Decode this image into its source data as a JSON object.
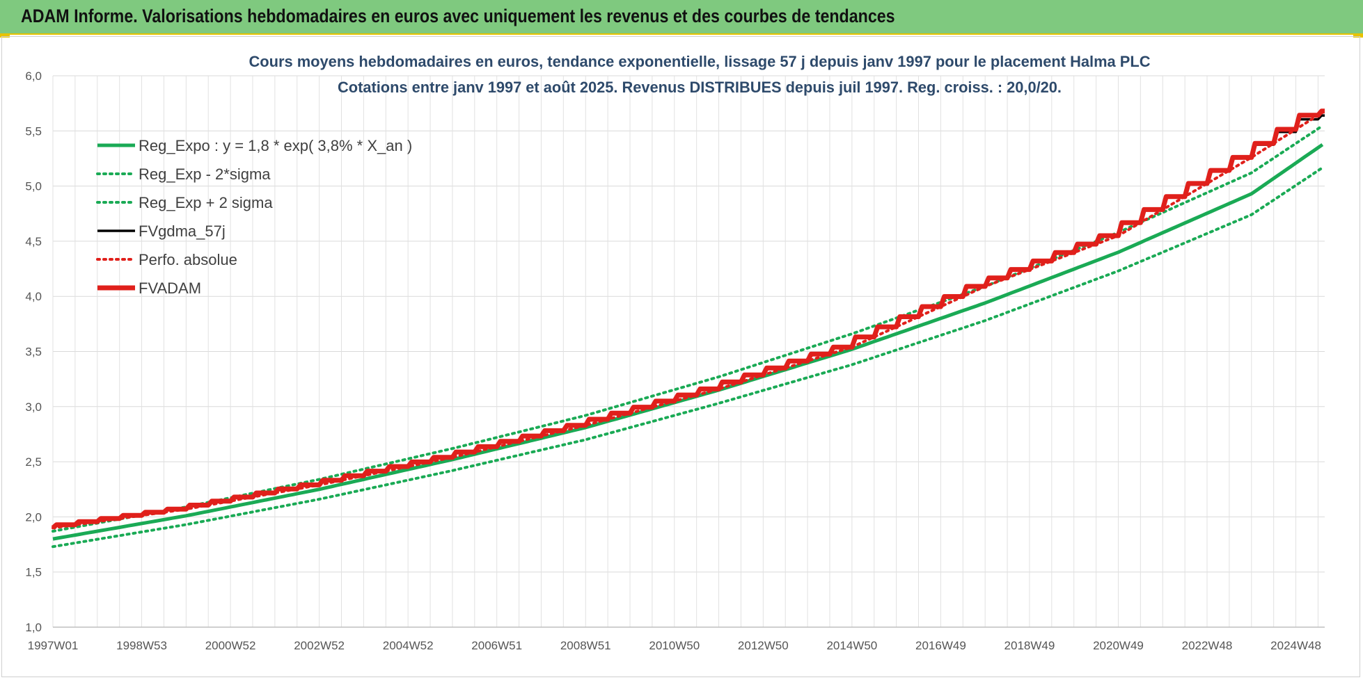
{
  "banner": {
    "title": "ADAM Informe. Valorisations hebdomadaires en euros avec uniquement les revenus et des courbes de tendances"
  },
  "chart_data": {
    "type": "line",
    "title": "Cours moyens hebdomadaires en euros, tendance exponentielle, lissage 57 j depuis janv 1997  pour le placement Halma PLC",
    "subtitle": "Cotations entre janv 1997 et août 2025.  Revenus DISTRIBUES depuis juil 1997.  Reg. croiss. : 20,0/20.",
    "xlabel": "",
    "ylabel": "",
    "ylim": [
      1.0,
      6.0
    ],
    "xlim": [
      1997.0,
      2025.65
    ],
    "y_ticks": [
      "1,0",
      "1,5",
      "2,0",
      "2,5",
      "3,0",
      "3,5",
      "4,0",
      "4,5",
      "5,0",
      "5,5",
      "6,0"
    ],
    "x_ticks": [
      {
        "label": "1997W01",
        "x": 1997.0
      },
      {
        "label": "1998W53",
        "x": 1999.0
      },
      {
        "label": "2000W52",
        "x": 2001.0
      },
      {
        "label": "2002W52",
        "x": 2003.0
      },
      {
        "label": "2004W52",
        "x": 2005.0
      },
      {
        "label": "2006W51",
        "x": 2007.0
      },
      {
        "label": "2008W51",
        "x": 2009.0
      },
      {
        "label": "2010W50",
        "x": 2011.0
      },
      {
        "label": "2012W50",
        "x": 2013.0
      },
      {
        "label": "2014W50",
        "x": 2015.0
      },
      {
        "label": "2016W49",
        "x": 2017.0
      },
      {
        "label": "2018W49",
        "x": 2019.0
      },
      {
        "label": "2020W49",
        "x": 2021.0
      },
      {
        "label": "2022W48",
        "x": 2023.0
      },
      {
        "label": "2024W48",
        "x": 2025.0
      }
    ],
    "grid": true,
    "legend_position": "top-left",
    "series": [
      {
        "name": "Reg_Expo : y = 1,8 * exp( 3,8% *  X_an )",
        "color": "#1aaa55",
        "style": "solid",
        "x": [
          1997.0,
          2000.0,
          2003.0,
          2006.0,
          2009.0,
          2012.0,
          2015.0,
          2018.0,
          2021.0,
          2024.0,
          2025.65
        ],
        "y": [
          1.8,
          2.01,
          2.25,
          2.52,
          2.81,
          3.15,
          3.52,
          3.94,
          4.4,
          4.93,
          5.39
        ]
      },
      {
        "name": "Reg_Exp - 2*sigma",
        "color": "#1aaa55",
        "style": "dotted",
        "x": [
          1997.0,
          2000.0,
          2003.0,
          2006.0,
          2009.0,
          2012.0,
          2015.0,
          2018.0,
          2021.0,
          2024.0,
          2025.65
        ],
        "y": [
          1.73,
          1.93,
          2.16,
          2.42,
          2.7,
          3.03,
          3.38,
          3.78,
          4.23,
          4.74,
          5.18
        ]
      },
      {
        "name": "Reg_Exp + 2 sigma",
        "color": "#1aaa55",
        "style": "dotted",
        "x": [
          1997.0,
          2000.0,
          2003.0,
          2006.0,
          2009.0,
          2012.0,
          2015.0,
          2018.0,
          2021.0,
          2024.0,
          2025.65
        ],
        "y": [
          1.87,
          2.09,
          2.34,
          2.62,
          2.92,
          3.27,
          3.66,
          4.09,
          4.58,
          5.12,
          5.56
        ]
      },
      {
        "name": "FVgdma_57j",
        "color": "#000000",
        "style": "solid",
        "x": [
          1997.0,
          2000.0,
          2003.0,
          2006.0,
          2009.0,
          2012.0,
          2015.0,
          2018.0,
          2021.0,
          2024.0,
          2025.65
        ],
        "y": [
          1.9,
          2.07,
          2.29,
          2.54,
          2.83,
          3.16,
          3.54,
          4.09,
          4.55,
          5.26,
          5.64
        ]
      },
      {
        "name": "Perfo. absolue",
        "color": "#e0201b",
        "style": "dotted",
        "x": [
          1997.0,
          2000.0,
          2003.0,
          2006.0,
          2009.0,
          2012.0,
          2015.0,
          2018.0,
          2021.0,
          2024.0,
          2025.65
        ],
        "y": [
          1.9,
          2.07,
          2.29,
          2.54,
          2.83,
          3.16,
          3.54,
          4.09,
          4.55,
          5.26,
          5.68
        ]
      },
      {
        "name": "FVADAM",
        "color": "#e0201b",
        "style": "thick",
        "x": [
          1997.0,
          2000.0,
          2003.0,
          2006.0,
          2009.0,
          2012.0,
          2015.0,
          2018.0,
          2021.0,
          2024.0,
          2025.65
        ],
        "y": [
          1.9,
          2.07,
          2.29,
          2.54,
          2.83,
          3.16,
          3.54,
          4.09,
          4.55,
          5.26,
          5.68
        ]
      }
    ]
  }
}
